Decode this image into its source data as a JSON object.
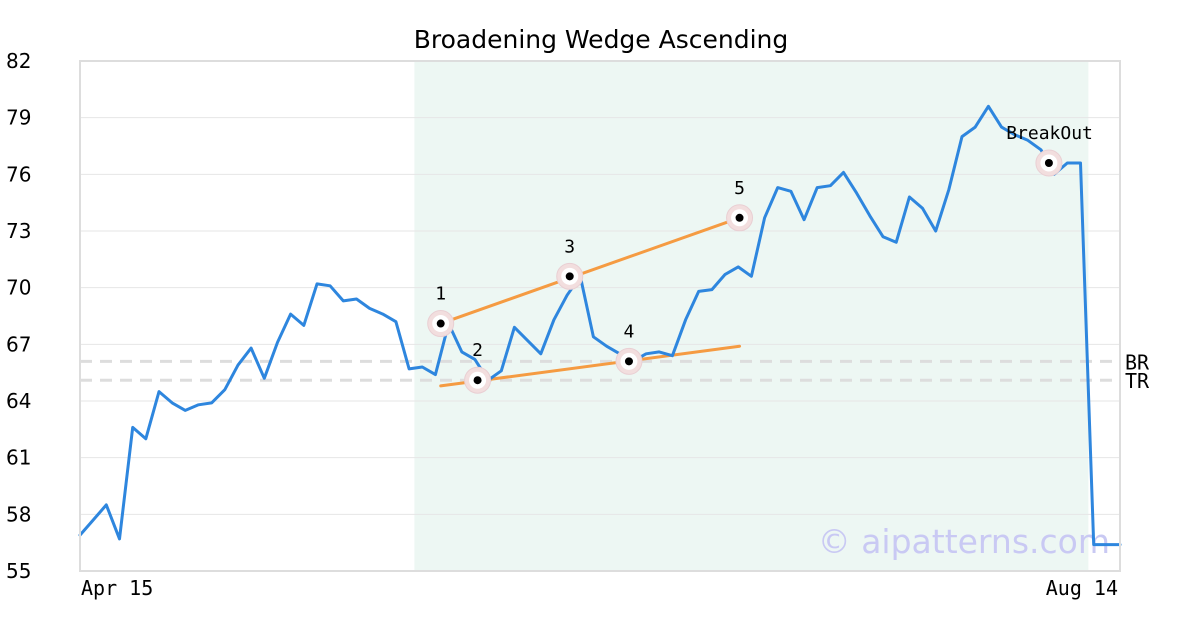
{
  "chart_data": {
    "type": "line",
    "title": "Broadening Wedge Ascending",
    "ylim": [
      55,
      82
    ],
    "yticks": [
      55,
      58,
      61,
      64,
      67,
      70,
      73,
      76,
      79,
      82
    ],
    "xtick_labels": [
      "Apr 15",
      "Aug 14"
    ],
    "grid": true,
    "series": [
      {
        "color": "#2e86de",
        "values": [
          56.9,
          57.7,
          58.5,
          56.7,
          62.6,
          62.0,
          64.5,
          63.9,
          63.5,
          63.8,
          63.9,
          64.6,
          65.9,
          66.8,
          65.2,
          67.1,
          68.6,
          68.0,
          70.2,
          70.1,
          69.3,
          69.4,
          68.9,
          68.6,
          68.2,
          65.7,
          65.8,
          65.4,
          68.1,
          66.6,
          66.2,
          65.1,
          65.6,
          67.9,
          67.2,
          66.5,
          68.3,
          69.6,
          70.6,
          67.4,
          66.9,
          66.5,
          66.1,
          66.5,
          66.6,
          66.4,
          68.3,
          69.8,
          69.9,
          70.7,
          71.1,
          70.6,
          73.7,
          75.3,
          75.1,
          73.6,
          75.3,
          75.4,
          76.1,
          75.0,
          73.8,
          72.7,
          72.4,
          74.8,
          74.2,
          73.0,
          75.2,
          78.0,
          78.5,
          79.6,
          78.5,
          78.1,
          77.8,
          77.3,
          76.0,
          76.6,
          76.6,
          56.4,
          56.4,
          56.4
        ]
      }
    ],
    "pattern_region": {
      "x_start": 25.4,
      "x_end": 76.6,
      "fill": "#edf7f3"
    },
    "pattern_points": [
      {
        "label": "1",
        "x": 27.4,
        "y": 68.1
      },
      {
        "label": "2",
        "x": 30.2,
        "y": 65.1
      },
      {
        "label": "3",
        "x": 37.2,
        "y": 70.6
      },
      {
        "label": "4",
        "x": 41.7,
        "y": 66.1
      },
      {
        "label": "5",
        "x": 50.1,
        "y": 73.7
      },
      {
        "label": "BreakOut",
        "x": 73.6,
        "y": 76.6
      }
    ],
    "trendlines": [
      {
        "color": "#f59b42",
        "from": {
          "x": 27.4,
          "y": 68.1
        },
        "to": {
          "x": 50.1,
          "y": 73.7
        }
      },
      {
        "color": "#f59b42",
        "from": {
          "x": 27.4,
          "y": 64.8
        },
        "to": {
          "x": 50.1,
          "y": 66.9
        }
      }
    ],
    "reference_lines": [
      {
        "label": "BR",
        "y": 66.1
      },
      {
        "label": "TR",
        "y": 65.1
      }
    ],
    "watermark": "© aipatterns.com"
  }
}
